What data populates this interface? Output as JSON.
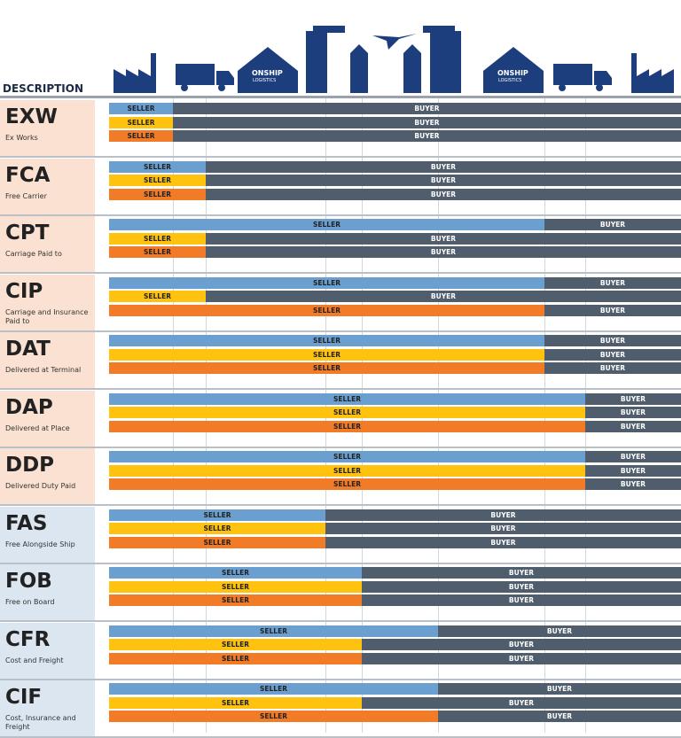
{
  "header": {
    "description": "DESCRIPTION",
    "brand": [
      "ONSHIP",
      "LOGISTICS"
    ]
  },
  "terms": [
    {
      "code": "EXW",
      "name": "Ex Works",
      "rows": [
        {
          "split": 1,
          "seller": "SELLER",
          "buyer": "BUYER"
        },
        {
          "split": 1,
          "seller": "SELLER",
          "buyer": "BUYER"
        },
        {
          "split": 1,
          "seller": "SELLER",
          "buyer": "BUYER"
        }
      ]
    },
    {
      "code": "FCA",
      "name": "Free Carrier",
      "rows": [
        {
          "split": 2,
          "seller": "SELLER",
          "buyer": "BUYER"
        },
        {
          "split": 2,
          "seller": "SELLER",
          "buyer": "BUYER"
        },
        {
          "split": 2,
          "seller": "SELLER",
          "buyer": "BUYER"
        }
      ]
    },
    {
      "code": "CPT",
      "name": "Carriage Paid to",
      "rows": [
        {
          "split": 6,
          "seller": "SELLER",
          "buyer": "BUYER"
        },
        {
          "split": 2,
          "seller": "SELLER",
          "buyer": "BUYER"
        },
        {
          "split": 2,
          "seller": "SELLER",
          "buyer": "BUYER"
        }
      ]
    },
    {
      "code": "CIP",
      "name": "Carriage and Insurance Paid to",
      "rows": [
        {
          "split": 6,
          "seller": "SELLER",
          "buyer": "BUYER"
        },
        {
          "split": 2,
          "seller": "SELLER",
          "buyer": "BUYER"
        },
        {
          "split": 6,
          "seller": "SELLER",
          "buyer": "BUYER"
        }
      ]
    },
    {
      "code": "DAT",
      "name": "Delivered at Terminal",
      "rows": [
        {
          "split": 6,
          "seller": "SELLER",
          "buyer": "BUYER"
        },
        {
          "split": 6,
          "seller": "SELLER",
          "buyer": "BUYER"
        },
        {
          "split": 6,
          "seller": "SELLER",
          "buyer": "BUYER"
        }
      ]
    },
    {
      "code": "DAP",
      "name": "Delivered at Place",
      "rows": [
        {
          "split": 7,
          "seller": "SELLER",
          "buyer": "BUYER"
        },
        {
          "split": 7,
          "seller": "SELLER",
          "buyer": "BUYER"
        },
        {
          "split": 7,
          "seller": "SELLER",
          "buyer": "BUYER"
        }
      ]
    },
    {
      "code": "DDP",
      "name": "Delivered Duty Paid",
      "rows": [
        {
          "split": 7,
          "seller": "SELLER",
          "buyer": "BUYER"
        },
        {
          "split": 7,
          "seller": "SELLER",
          "buyer": "BUYER"
        },
        {
          "split": 7,
          "seller": "SELLER",
          "buyer": "BUYER"
        }
      ]
    },
    {
      "code": "FAS",
      "name": "Free Alongside Ship",
      "rows": [
        {
          "split": 3,
          "seller": "SELLER",
          "buyer": "BUYER"
        },
        {
          "split": 3,
          "seller": "SELLER",
          "buyer": "BUYER"
        },
        {
          "split": 3,
          "seller": "SELLER",
          "buyer": "BUYER"
        }
      ]
    },
    {
      "code": "FOB",
      "name": "Free on Board",
      "rows": [
        {
          "split": 4,
          "seller": "SELLER",
          "buyer": "BUYER"
        },
        {
          "split": 4,
          "seller": "SELLER",
          "buyer": "BUYER"
        },
        {
          "split": 4,
          "seller": "SELLER",
          "buyer": "BUYER"
        }
      ]
    },
    {
      "code": "CFR",
      "name": "Cost and Freight",
      "rows": [
        {
          "split": 5,
          "seller": "SELLER",
          "buyer": "BUYER"
        },
        {
          "split": 4,
          "seller": "SELLER",
          "buyer": "BUYER"
        },
        {
          "split": 4,
          "seller": "SELLER",
          "buyer": "BUYER"
        }
      ]
    },
    {
      "code": "CIF",
      "name": "Cost, Insurance and Freight",
      "rows": [
        {
          "split": 5,
          "seller": "SELLER",
          "buyer": "BUYER"
        },
        {
          "split": 4,
          "seller": "SELLER",
          "buyer": "BUYER"
        },
        {
          "split": 5,
          "seller": "SELLER",
          "buyer": "BUYER"
        }
      ]
    }
  ]
}
